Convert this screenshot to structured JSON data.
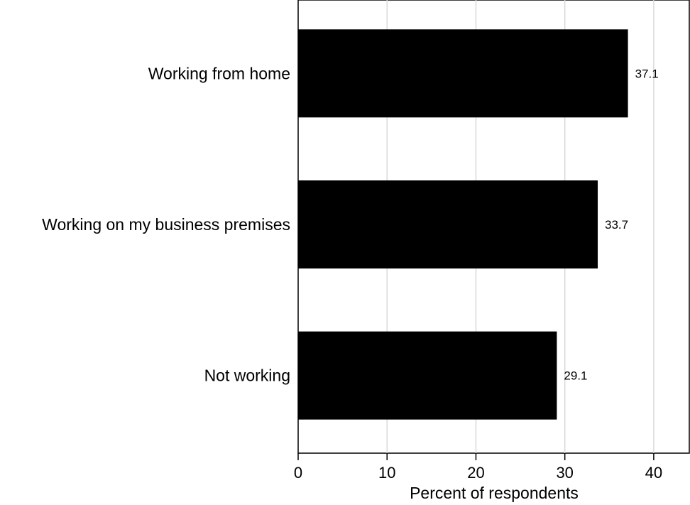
{
  "chart_data": {
    "type": "bar",
    "orientation": "horizontal",
    "categories": [
      "Working from home",
      "Working on my business premises",
      "Not working"
    ],
    "values": [
      37.1,
      33.7,
      29.1
    ],
    "value_labels": [
      "37.1",
      "33.7",
      "29.1"
    ],
    "xlabel": "Percent of respondents",
    "ylabel": "",
    "xlim": [
      0,
      44
    ],
    "xticks": [
      0,
      10,
      20,
      30,
      40
    ],
    "xtick_labels": [
      "0",
      "10",
      "20",
      "30",
      "40"
    ],
    "grid": "vertical",
    "bar_color": "#000000",
    "grid_color": "#d9d9d9"
  }
}
